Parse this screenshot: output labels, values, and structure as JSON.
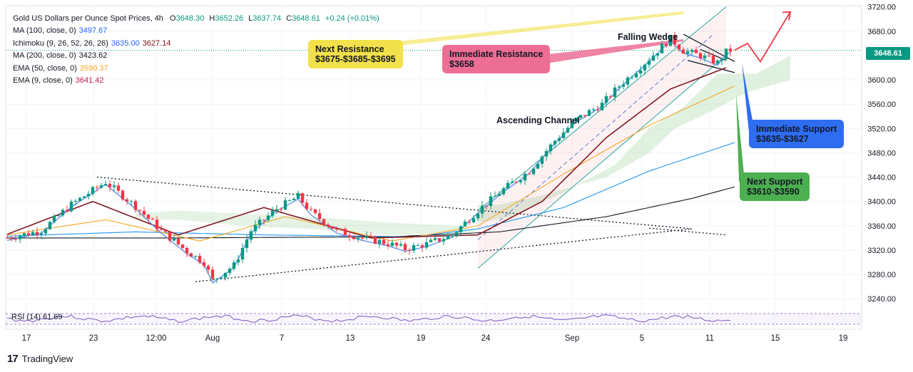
{
  "chart_data": {
    "type": "candlestick",
    "title": "Gold US Dollars per Ounce Spot Prices, 4h",
    "ohlc": {
      "O": "3648.30",
      "H": "3652.26",
      "L": "3637.74",
      "C": "3648.61",
      "change": "+0.24 (+0.01%)"
    },
    "last_price": "3648.61",
    "indicators": [
      {
        "label": "MA (100, close, 0)",
        "values": [
          "3497.67"
        ],
        "color": "#2962ff"
      },
      {
        "label": "Ichimoku (9, 26, 52, 26, 26)",
        "values": [
          "3635.00",
          "3627.14"
        ],
        "color": "#2962ff"
      },
      {
        "label": "MA (200, close, 0)",
        "values": [
          "3423.62"
        ],
        "color": "#131722"
      },
      {
        "label": "EMA (50, close, 0)",
        "values": [
          "3590.37"
        ],
        "color": "#f5a623"
      },
      {
        "label": "EMA (9, close, 0)",
        "values": [
          "3641.42"
        ],
        "color": "#c2185b"
      }
    ],
    "y_ticks": [
      "3720.00",
      "3680.00",
      "3640.00",
      "3600.00",
      "3560.00",
      "3520.00",
      "3480.00",
      "3440.00",
      "3400.00",
      "3360.00",
      "3320.00",
      "3280.00",
      "3240.00"
    ],
    "ylim": [
      3225,
      3722
    ],
    "x_ticks": [
      "17",
      "23",
      "12:00",
      "Aug",
      "7",
      "13",
      "19",
      "24",
      "Sep",
      "5",
      "11",
      "15",
      "19"
    ],
    "rsi_label": "RSI (14)",
    "rsi_value": "61.69",
    "price_path": [
      [
        0,
        3340
      ],
      [
        8,
        3352
      ],
      [
        15,
        3395
      ],
      [
        23,
        3432
      ],
      [
        30,
        3392
      ],
      [
        36,
        3352
      ],
      [
        42,
        3318
      ],
      [
        46,
        3300
      ],
      [
        48,
        3270
      ],
      [
        53,
        3295
      ],
      [
        57,
        3352
      ],
      [
        63,
        3388
      ],
      [
        68,
        3408
      ],
      [
        71,
        3382
      ],
      [
        77,
        3352
      ],
      [
        83,
        3340
      ],
      [
        89,
        3331
      ],
      [
        93,
        3322
      ],
      [
        98,
        3330
      ],
      [
        104,
        3345
      ],
      [
        110,
        3385
      ],
      [
        116,
        3420
      ],
      [
        122,
        3450
      ],
      [
        128,
        3500
      ],
      [
        133,
        3535
      ],
      [
        139,
        3560
      ],
      [
        143,
        3590
      ],
      [
        149,
        3628
      ],
      [
        155,
        3668
      ],
      [
        158,
        3648
      ],
      [
        162,
        3640
      ],
      [
        166,
        3628
      ],
      [
        168,
        3646
      ],
      [
        169,
        3648.6
      ]
    ],
    "sma100": [
      [
        0,
        3343
      ],
      [
        30,
        3350
      ],
      [
        60,
        3345
      ],
      [
        95,
        3342
      ],
      [
        110,
        3355
      ],
      [
        130,
        3390
      ],
      [
        150,
        3450
      ],
      [
        170,
        3497
      ]
    ],
    "sma200": [
      [
        0,
        3340
      ],
      [
        40,
        3340
      ],
      [
        90,
        3342
      ],
      [
        115,
        3350
      ],
      [
        140,
        3375
      ],
      [
        160,
        3405
      ],
      [
        170,
        3424
      ]
    ],
    "ema50": [
      [
        0,
        3345
      ],
      [
        23,
        3370
      ],
      [
        45,
        3335
      ],
      [
        65,
        3375
      ],
      [
        90,
        3335
      ],
      [
        110,
        3360
      ],
      [
        130,
        3445
      ],
      [
        150,
        3525
      ],
      [
        170,
        3590
      ]
    ],
    "ichimoku_base": [
      [
        0,
        3346
      ],
      [
        20,
        3400
      ],
      [
        40,
        3345
      ],
      [
        60,
        3390
      ],
      [
        85,
        3340
      ],
      [
        110,
        3345
      ],
      [
        125,
        3400
      ],
      [
        140,
        3505
      ],
      [
        155,
        3585
      ],
      [
        168,
        3620
      ]
    ],
    "annotations": [
      {
        "text": "Next Resistance\n$3675-$3685-$3695",
        "color": "#f2e14a"
      },
      {
        "text": "Immediate Resistance\n$3658",
        "color": "#ec6e95"
      },
      {
        "text": "Falling Wedge",
        "color": ""
      },
      {
        "text": "Ascending Channel",
        "color": ""
      },
      {
        "text": "Immediate Support\n$3635-$3627",
        "color": "#2f6df0"
      },
      {
        "text": "Next Support\n$3610-$3590",
        "color": "#4caf50"
      }
    ]
  },
  "legend": {
    "title": "Gold US Dollars per Ounce Spot Prices, 4h",
    "o_label": "O",
    "o": "3648.30",
    "h_label": "H",
    "h": "3652.26",
    "l_label": "L",
    "l": "3637.74",
    "c_label": "C",
    "c": "3648.61",
    "change": "+0.24 (+0.01%)",
    "ma100_label": "MA (100, close, 0)",
    "ma100": "3497.67",
    "ichimoku_label": "Ichimoku (9, 26, 52, 26, 26)",
    "ichimoku_a": "3635.00",
    "ichimoku_b": "3627.14",
    "ma200_label": "MA (200, close, 0)",
    "ma200": "3423.62",
    "ema50_label": "EMA (50, close, 0)",
    "ema50": "3590.37",
    "ema9_label": "EMA (9, close, 0)",
    "ema9": "3641.42"
  },
  "callouts": {
    "next_resistance": "Next Resistance\n$3675-$3685-$3695",
    "immediate_resistance": "Immediate Resistance\n$3658",
    "immediate_support": "Immediate Support\n$3635-$3627",
    "next_support": "Next Support\n$3610-$3590",
    "falling_wedge": "Falling Wedge",
    "ascending_channel": "Ascending Channel"
  },
  "branding": {
    "logo_text": "TradingView",
    "logo_mark": "17"
  },
  "colors": {
    "up": "#089981",
    "down": "#f23645",
    "resistance_yellow": "#f2e14a",
    "resistance_pink": "#ec6e95",
    "support_blue": "#2f6df0",
    "support_green": "#4caf50",
    "channel": "#26a69a",
    "forecast": "#f23645"
  }
}
